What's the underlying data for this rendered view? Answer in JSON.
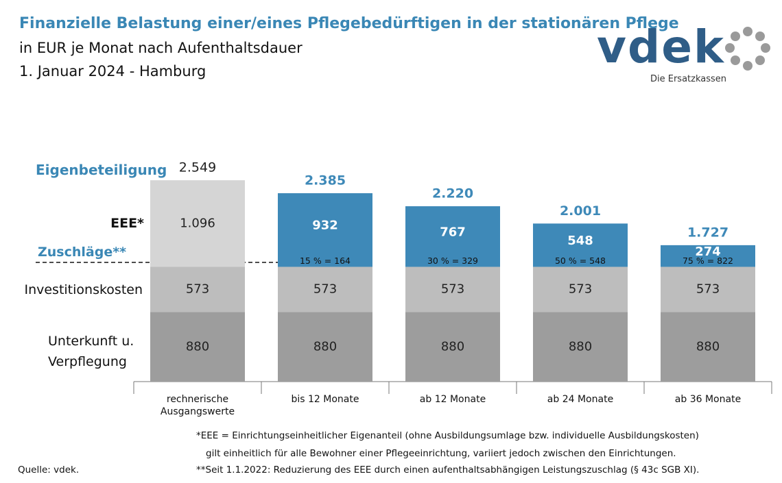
{
  "header": {
    "title": "Finanzielle Belastung einer/eines Pflegebedürftigen in der stationären Pflege",
    "subtitle": "in EUR je Monat nach Aufenthaltsdauer",
    "date": "1. Januar 2024 - Hamburg"
  },
  "logo": {
    "name": "vdek",
    "tagline": "Die Ersatzkassen"
  },
  "chart_data": {
    "type": "stacked_bar",
    "categories": [
      "rechnerische Ausgangswerte",
      "bis 12 Monate",
      "ab 12 Monate",
      "ab 24 Monate",
      "ab 36 Monate"
    ],
    "series": [
      {
        "name": "Unterkunft u. Verpflegung",
        "color": "#9d9d9d",
        "values": [
          880,
          880,
          880,
          880,
          880
        ]
      },
      {
        "name": "Investitionskosten",
        "color": "#bdbdbd",
        "values": [
          573,
          573,
          573,
          573,
          573
        ]
      },
      {
        "name": "EEE*",
        "colors": [
          "#d5d5d5",
          "#3e89b8",
          "#3e89b8",
          "#3e89b8",
          "#3e89b8"
        ],
        "values": [
          1096,
          932,
          767,
          548,
          274
        ],
        "value_labels": [
          "1.096",
          "932",
          "767",
          "548",
          "274"
        ]
      }
    ],
    "totals": {
      "name": "Eigenbeteiligung",
      "colors": [
        "#222222",
        "#3e89b8",
        "#3e89b8",
        "#3e89b8",
        "#3e89b8"
      ],
      "values": [
        2549,
        2385,
        2220,
        2001,
        1727
      ],
      "value_labels": [
        "2.549",
        "2.385",
        "2.220",
        "2.001",
        "1.727"
      ]
    },
    "surcharge": {
      "name": "Zuschläge**",
      "labels": [
        null,
        "15 % = 164",
        "30 % = 329",
        "50 % = 548",
        "75 % = 822"
      ]
    }
  },
  "footnotes": [
    "*EEE = Einrichtungseinheitlicher  Eigenanteil (ohne Ausbildungsumlage  bzw. individuelle Ausbildungskosten)",
    "gilt einheitlich  für alle Bewohner einer Pflegeeinrichtung,  variiert jedoch zwischen den Einrichtungen.",
    "**Seit 1.1.2022:  Reduzierung des EEE durch einen aufenthaltsabhängigen Leistungszuschlag  (§ 43c SGB XI)."
  ],
  "source": "Quelle: vdek."
}
